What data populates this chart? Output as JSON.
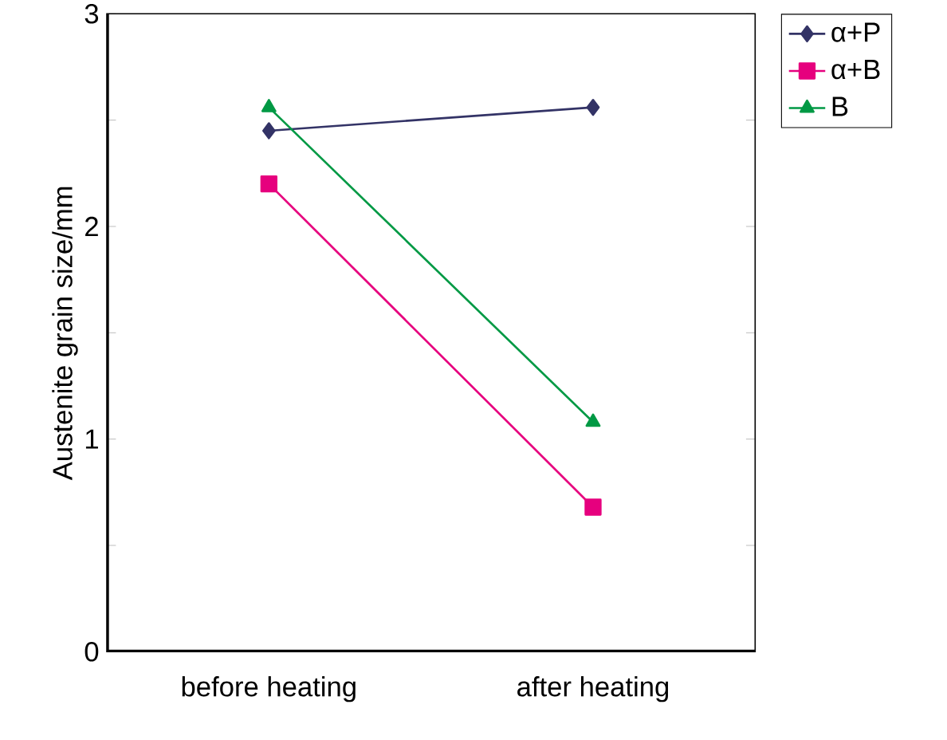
{
  "chart_data": {
    "type": "line",
    "ylabel": "Austenite grain size/mm",
    "categories": [
      "before heating",
      "after heating"
    ],
    "series": [
      {
        "name": "α+P",
        "color": "#333366",
        "marker": "diamond",
        "values": [
          2.45,
          2.56
        ]
      },
      {
        "name": "α+B",
        "color": "#e6007e",
        "marker": "square",
        "values": [
          2.2,
          0.68
        ]
      },
      {
        "name": "B",
        "color": "#009944",
        "marker": "triangle",
        "values": [
          2.56,
          1.08
        ]
      }
    ],
    "ylim": [
      0,
      3
    ],
    "yticks": [
      0,
      {
        "value": 0.5,
        "label": null
      },
      1,
      {
        "value": 1.5,
        "label": null
      },
      2,
      {
        "value": 2.5,
        "label": null
      },
      3
    ],
    "grid": false,
    "legend": "top right",
    "line_style": "solid"
  }
}
